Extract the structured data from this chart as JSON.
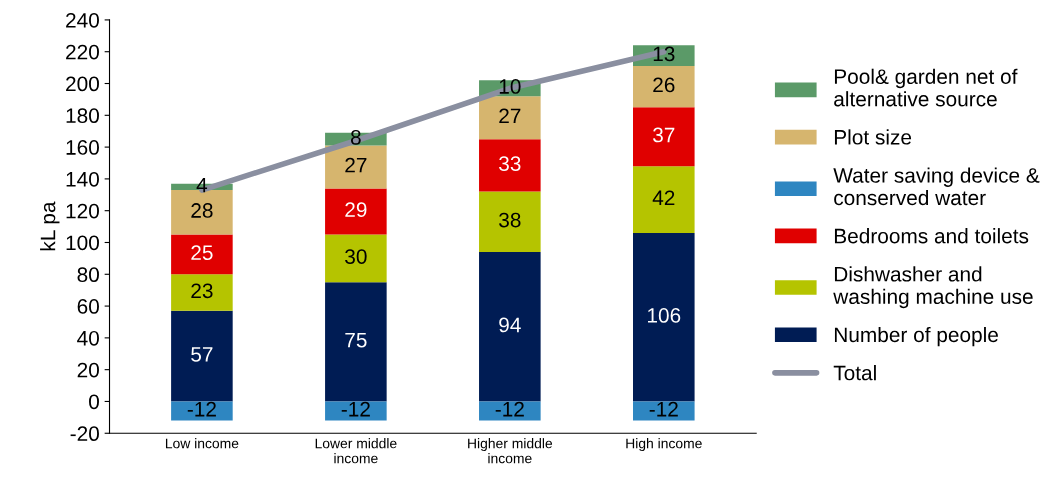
{
  "chart_data": {
    "type": "bar",
    "stacked": true,
    "ylabel": "kL pa",
    "categories": [
      "Low income",
      "Lower middle\nincome",
      "Higher middle\nincome",
      "High income"
    ],
    "ylim": [
      -20,
      240
    ],
    "yticks": [
      -20,
      0,
      20,
      40,
      60,
      80,
      100,
      120,
      140,
      160,
      180,
      200,
      220,
      240
    ],
    "grid": false,
    "legend": "right",
    "series": [
      {
        "name": "Number of people",
        "color": "#001c54",
        "values": [
          57,
          75,
          94,
          106
        ],
        "value_labels": [
          "57",
          "75",
          "94",
          "106"
        ]
      },
      {
        "name": "Dishwasher and\nwashing machine use",
        "color": "#b5c400",
        "values": [
          23,
          30,
          38,
          42
        ],
        "value_labels": [
          "23",
          "30",
          "38",
          "42"
        ]
      },
      {
        "name": "Bedrooms and toilets",
        "color": "#e00000",
        "values": [
          25,
          29,
          33,
          37
        ],
        "value_labels": [
          "25",
          "29",
          "33",
          "37"
        ]
      },
      {
        "name": "Water saving device &\nconserved water",
        "color": "#2e86c1",
        "values": [
          -12,
          -12,
          -12,
          -12
        ],
        "value_labels": [
          "-12",
          "-12",
          "-12",
          "-12"
        ]
      },
      {
        "name": "Plot size",
        "color": "#d6b56e",
        "values": [
          28,
          27,
          27,
          26
        ],
        "value_labels": [
          "28",
          "27",
          "27",
          "26"
        ]
      },
      {
        "name": "Pool& garden net of\nalternative source",
        "color": "#5b9a68",
        "values": [
          4,
          8,
          10,
          13
        ],
        "value_labels": [
          "4",
          "8",
          "10",
          "13"
        ]
      },
      {
        "name": "Total",
        "type": "line",
        "color": "#8a8fa0",
        "values": [
          133,
          164,
          197,
          220
        ]
      }
    ]
  }
}
